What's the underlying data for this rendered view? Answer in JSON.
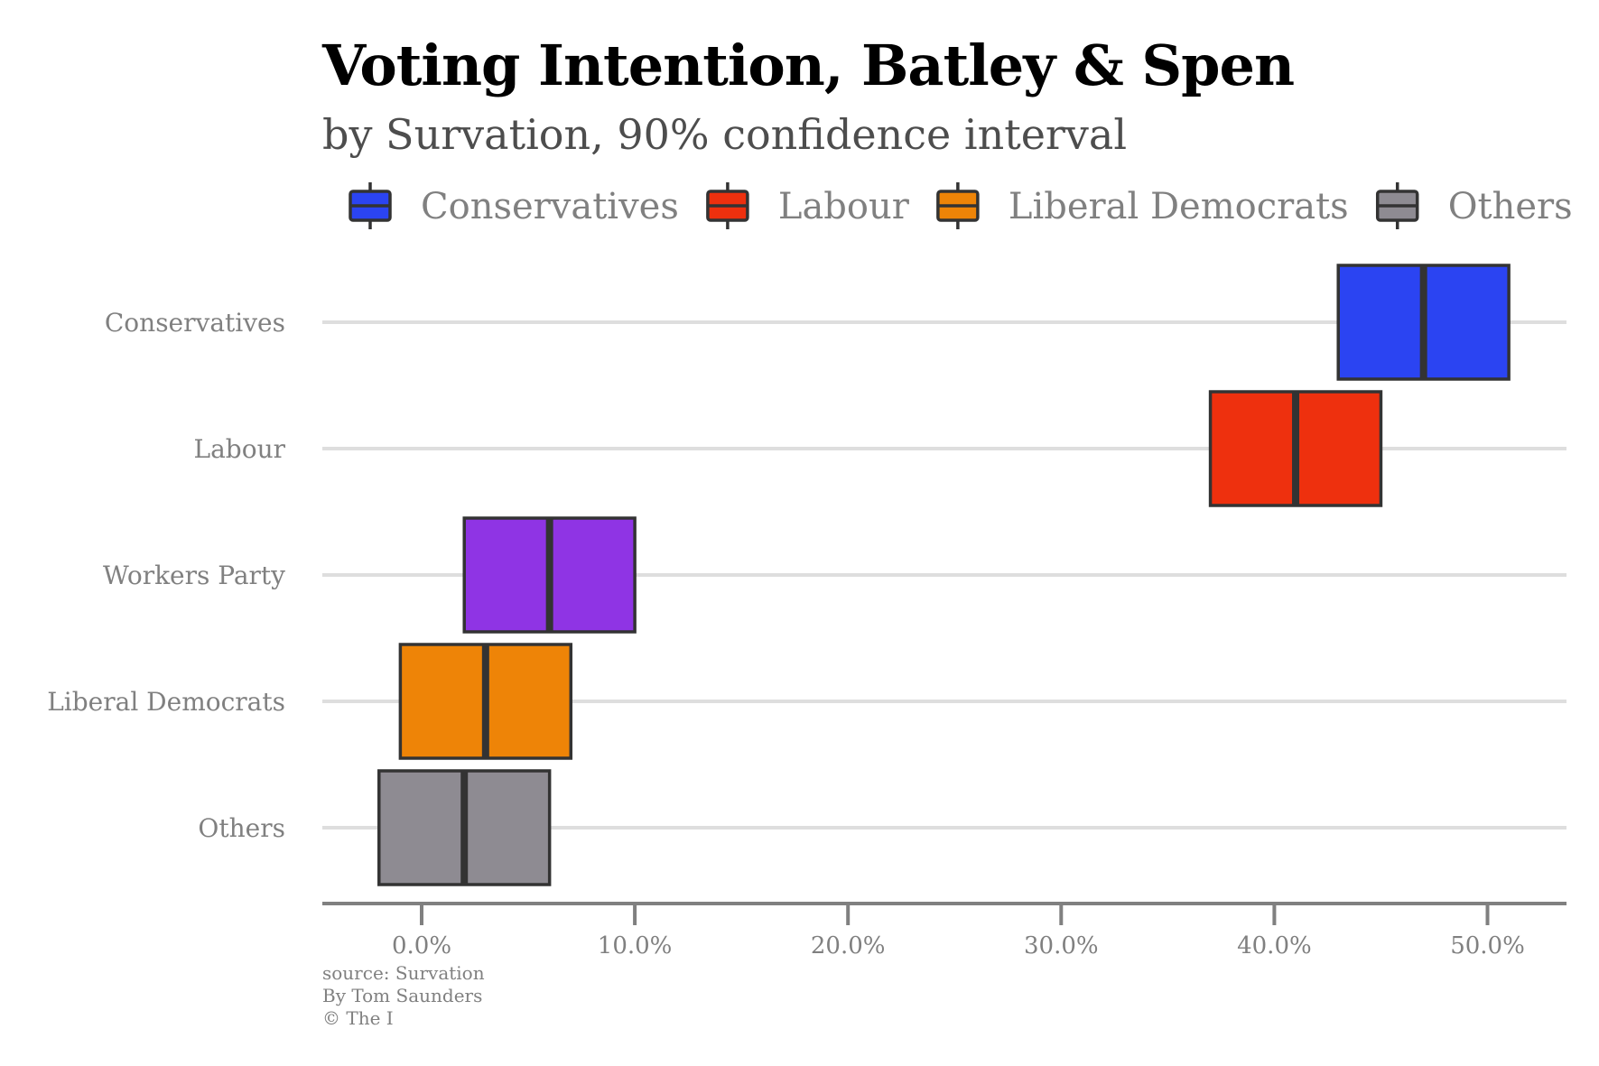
{
  "title": "Voting Intention, Batley & Spen",
  "subtitle": "by Survation, 90% confidence interval",
  "caption": {
    "line1": "source: Survation",
    "line2": "By Tom Saunders",
    "line3": "© The I"
  },
  "chart_data": {
    "type": "boxplot",
    "orientation": "horizontal",
    "xlim": [
      -4.6,
      53.7
    ],
    "x_ticks": [
      0,
      10,
      20,
      30,
      40,
      50
    ],
    "x_tick_labels": [
      "0.0%",
      "10.0%",
      "20.0%",
      "30.0%",
      "40.0%",
      "50.0%"
    ],
    "grid": "horizontal major lines at each category",
    "legend_position": "top",
    "legend": [
      {
        "name": "Conservatives",
        "color": "#2b44f2"
      },
      {
        "name": "Labour",
        "color": "#ee300e"
      },
      {
        "name": "Liberal Democrats",
        "color": "#ee8407"
      },
      {
        "name": "Others",
        "color": "#8e8b92"
      },
      {
        "name": "Workers Party",
        "color": "#8f34e4"
      }
    ],
    "categories": [
      "Conservatives",
      "Labour",
      "Workers Party",
      "Liberal Democrats",
      "Others"
    ],
    "series": [
      {
        "name": "Conservatives",
        "low": 43,
        "median": 47,
        "high": 51,
        "color": "#2b44f2"
      },
      {
        "name": "Labour",
        "low": 37,
        "median": 41,
        "high": 45,
        "color": "#ee300e"
      },
      {
        "name": "Workers Party",
        "low": 2,
        "median": 6,
        "high": 10,
        "color": "#8f34e4"
      },
      {
        "name": "Liberal Democrats",
        "low": -1,
        "median": 3,
        "high": 7,
        "color": "#ee8407"
      },
      {
        "name": "Others",
        "low": -2,
        "median": 2,
        "high": 6,
        "color": "#8e8b92"
      }
    ]
  }
}
